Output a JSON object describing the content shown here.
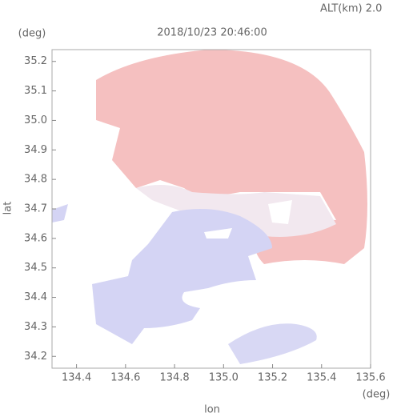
{
  "chart_data": {
    "type": "map",
    "title": "2018/10/23 20:46:00",
    "subtitle": "ALT(km) 2.0",
    "xlabel": "lon",
    "ylabel": "lat",
    "xunit": "(deg)",
    "yunit": "(deg)",
    "xlim": [
      134.3,
      135.6
    ],
    "ylim": [
      34.16,
      35.24
    ],
    "xticks": [
      134.4,
      134.6,
      134.8,
      {
        "value": 135.0,
        "label": "135.0"
      },
      135.2,
      135.4,
      135.6
    ],
    "yticks": [
      34.2,
      34.3,
      34.4,
      34.5,
      34.6,
      34.7,
      34.8,
      34.9,
      {
        "value": 35.0,
        "label": "35.0"
      },
      35.1,
      35.2
    ]
  }
}
